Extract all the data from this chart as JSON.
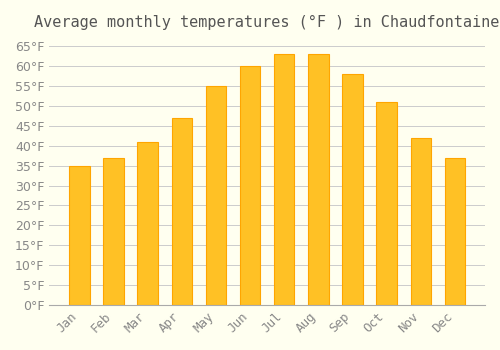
{
  "title": "Average monthly temperatures (°F ) in Chaudfontaine",
  "months": [
    "Jan",
    "Feb",
    "Mar",
    "Apr",
    "May",
    "Jun",
    "Jul",
    "Aug",
    "Sep",
    "Oct",
    "Nov",
    "Dec"
  ],
  "values": [
    35,
    37,
    41,
    47,
    55,
    60,
    63,
    63,
    58,
    51,
    42,
    37
  ],
  "bar_color": "#FFC125",
  "bar_edge_color": "#FFA500",
  "background_color": "#FFFFF0",
  "grid_color": "#CCCCCC",
  "ylim": [
    0,
    67
  ],
  "yticks": [
    0,
    5,
    10,
    15,
    20,
    25,
    30,
    35,
    40,
    45,
    50,
    55,
    60,
    65
  ],
  "title_fontsize": 11,
  "tick_fontsize": 9
}
